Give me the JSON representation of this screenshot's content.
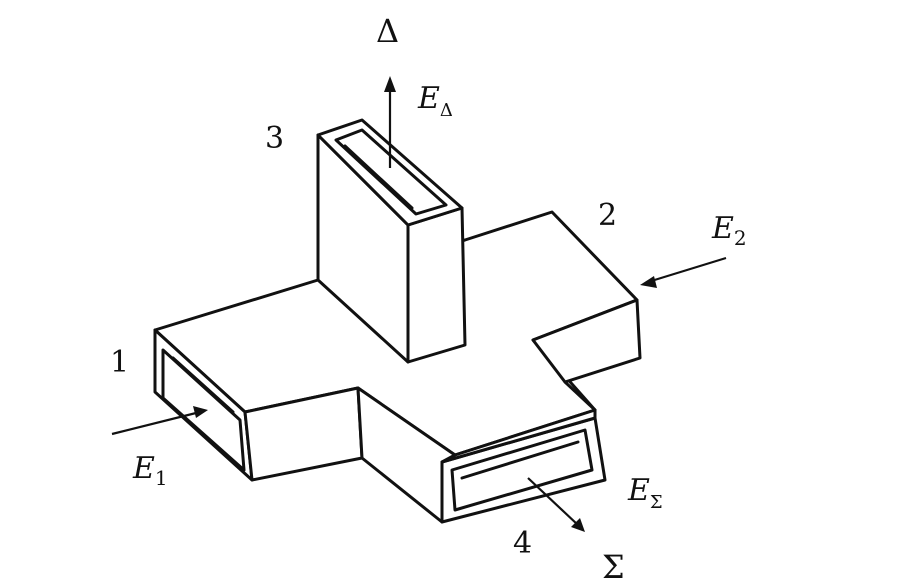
{
  "ports": {
    "p1": "1",
    "p2": "2",
    "p3": "3",
    "p4": "4"
  },
  "fields": {
    "e1": {
      "base": "E",
      "sub": "1"
    },
    "e2": {
      "base": "E",
      "sub": "2"
    },
    "e_delta": {
      "base": "E",
      "sub": "Δ"
    },
    "e_sigma": {
      "base": "E",
      "sub": "Σ"
    }
  },
  "outputs": {
    "delta": "Δ",
    "sigma": "Σ"
  }
}
